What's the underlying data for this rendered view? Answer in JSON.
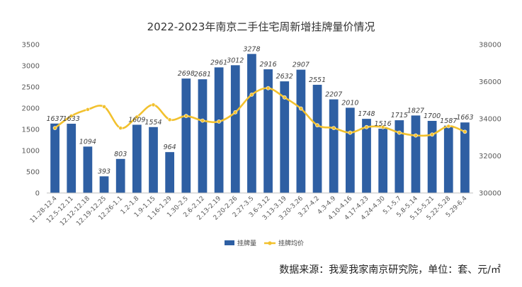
{
  "chart_data": {
    "type": "bar+line",
    "title": "2022-2023年南京二手住宅周新增挂牌量价情况",
    "categories": [
      "11.28-12.4",
      "12.5-12.11",
      "12.12-12.18",
      "12.19-12.25",
      "12.26-1.1",
      "1.2-1.8",
      "1.9-1.15",
      "1.16-1.29",
      "1.30-2.5",
      "2.6-2.12",
      "2.13-2.19",
      "2.20-2.26",
      "2.27-3.5",
      "3.6-3.12",
      "3.13-3.19",
      "3.20-3.26",
      "3.27-4.2",
      "4.3-4.9",
      "4.10-4.16",
      "4.17-4.23",
      "4.24-4.30",
      "5.1-5.7",
      "5.8-5.14",
      "5.15-5.21",
      "5.22-5.28",
      "5.29-6.4"
    ],
    "series": [
      {
        "name": "挂牌量",
        "type": "bar",
        "axis": "left",
        "color": "#2e5fa3",
        "values": [
          1637,
          1633,
          1094,
          393,
          803,
          1609,
          1554,
          964,
          2698,
          2681,
          2961,
          3012,
          3278,
          2916,
          2632,
          2907,
          2551,
          2207,
          2010,
          1748,
          1516,
          1715,
          1827,
          1700,
          1587,
          1663
        ]
      },
      {
        "name": "挂牌均价",
        "type": "line",
        "axis": "right",
        "color": "#f2c12e",
        "values": [
          33500,
          34150,
          34500,
          34650,
          33500,
          34100,
          34750,
          33950,
          34150,
          33900,
          33850,
          34350,
          35300,
          35650,
          35150,
          34550,
          33650,
          33500,
          33250,
          33550,
          33550,
          33250,
          33100,
          33150,
          33600,
          33300
        ]
      }
    ],
    "y_left": {
      "min": 0,
      "max": 3500,
      "ticks": [
        0,
        500,
        1000,
        1500,
        2000,
        2500,
        3000,
        3500
      ]
    },
    "y_right": {
      "min": 30000,
      "max": 38000,
      "ticks": [
        30000,
        32000,
        34000,
        36000,
        38000
      ]
    },
    "grid": false,
    "legend": "bottom-center"
  },
  "source": "数据来源：我爱我家南京研究院，单位：套、元/㎡"
}
